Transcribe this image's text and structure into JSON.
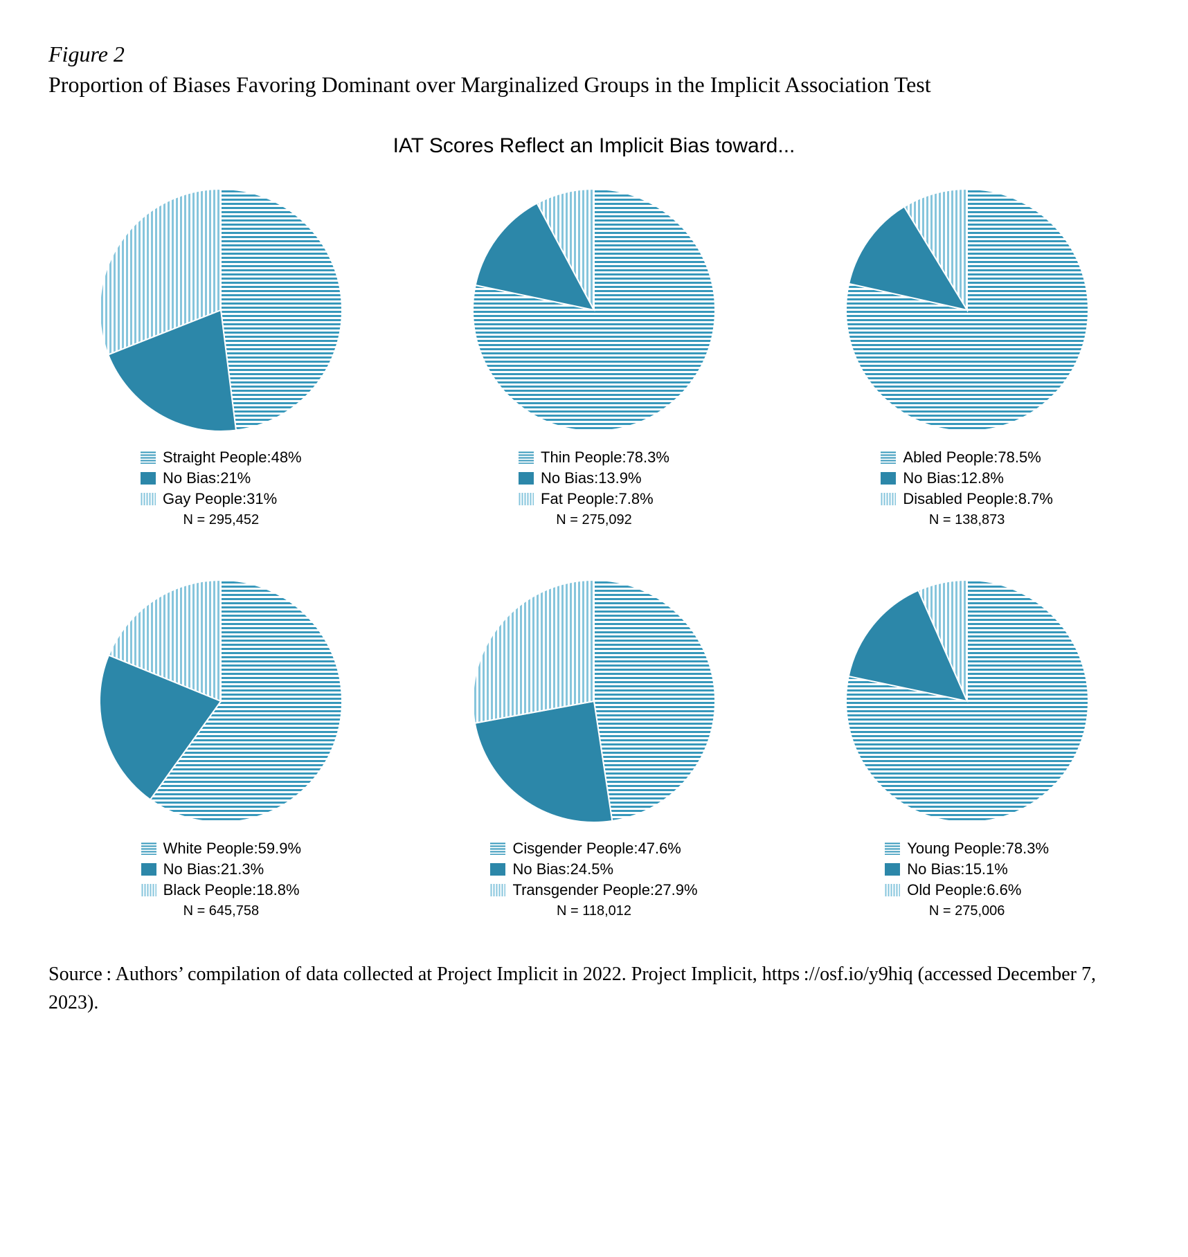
{
  "figure_label": "Figure 2",
  "figure_title": "Proportion of Biases Favoring Dominant over Marginalized Groups in the Implicit Association Test",
  "chart_title": "IAT Scores Reflect an Implicit Bias toward...",
  "colors": {
    "stripe": "#3798bb",
    "solid": "#2c87a9",
    "background": "#ffffff",
    "text": "#000000",
    "separator": "#ffffff"
  },
  "pie_radius": 175,
  "pie_stroke_width": 2,
  "legend_fontsize": 22,
  "n_fontsize": 20,
  "pies": [
    {
      "slices": [
        {
          "label": "Straight People",
          "value": 48,
          "display": "48%",
          "fill": "h-stripe"
        },
        {
          "label": "No Bias",
          "value": 21,
          "display": "21%",
          "fill": "solid"
        },
        {
          "label": "Gay People",
          "value": 31,
          "display": "31%",
          "fill": "v-stripe"
        }
      ],
      "n": "N = 295,452"
    },
    {
      "slices": [
        {
          "label": "Thin People",
          "value": 78.3,
          "display": "78.3%",
          "fill": "h-stripe"
        },
        {
          "label": "No Bias",
          "value": 13.9,
          "display": "13.9%",
          "fill": "solid"
        },
        {
          "label": "Fat People",
          "value": 7.8,
          "display": "7.8%",
          "fill": "v-stripe"
        }
      ],
      "n": "N = 275,092"
    },
    {
      "slices": [
        {
          "label": "Abled People",
          "value": 78.5,
          "display": "78.5%",
          "fill": "h-stripe"
        },
        {
          "label": "No Bias",
          "value": 12.8,
          "display": "12.8%",
          "fill": "solid"
        },
        {
          "label": "Disabled People",
          "value": 8.7,
          "display": "8.7%",
          "fill": "v-stripe"
        }
      ],
      "n": "N = 138,873"
    },
    {
      "slices": [
        {
          "label": "White People",
          "value": 59.9,
          "display": "59.9%",
          "fill": "h-stripe"
        },
        {
          "label": "No Bias",
          "value": 21.3,
          "display": "21.3%",
          "fill": "solid"
        },
        {
          "label": "Black People",
          "value": 18.8,
          "display": "18.8%",
          "fill": "v-stripe"
        }
      ],
      "n": "N = 645,758"
    },
    {
      "slices": [
        {
          "label": "Cisgender People",
          "value": 47.6,
          "display": "47.6%",
          "fill": "h-stripe"
        },
        {
          "label": "No Bias",
          "value": 24.5,
          "display": "24.5%",
          "fill": "solid"
        },
        {
          "label": "Transgender People",
          "value": 27.9,
          "display": "27.9%",
          "fill": "v-stripe"
        }
      ],
      "n": "N = 118,012"
    },
    {
      "slices": [
        {
          "label": "Young People",
          "value": 78.3,
          "display": "78.3%",
          "fill": "h-stripe"
        },
        {
          "label": "No Bias",
          "value": 15.1,
          "display": "15.1%",
          "fill": "solid"
        },
        {
          "label": "Old People",
          "value": 6.6,
          "display": "6.6%",
          "fill": "v-stripe"
        }
      ],
      "n": "N = 275,006"
    }
  ],
  "source": "Source : Authors’ compilation of data collected at Project Implicit in 2022. Project Implicit, https ://osf.io/y9hiq (accessed December 7, 2023)."
}
